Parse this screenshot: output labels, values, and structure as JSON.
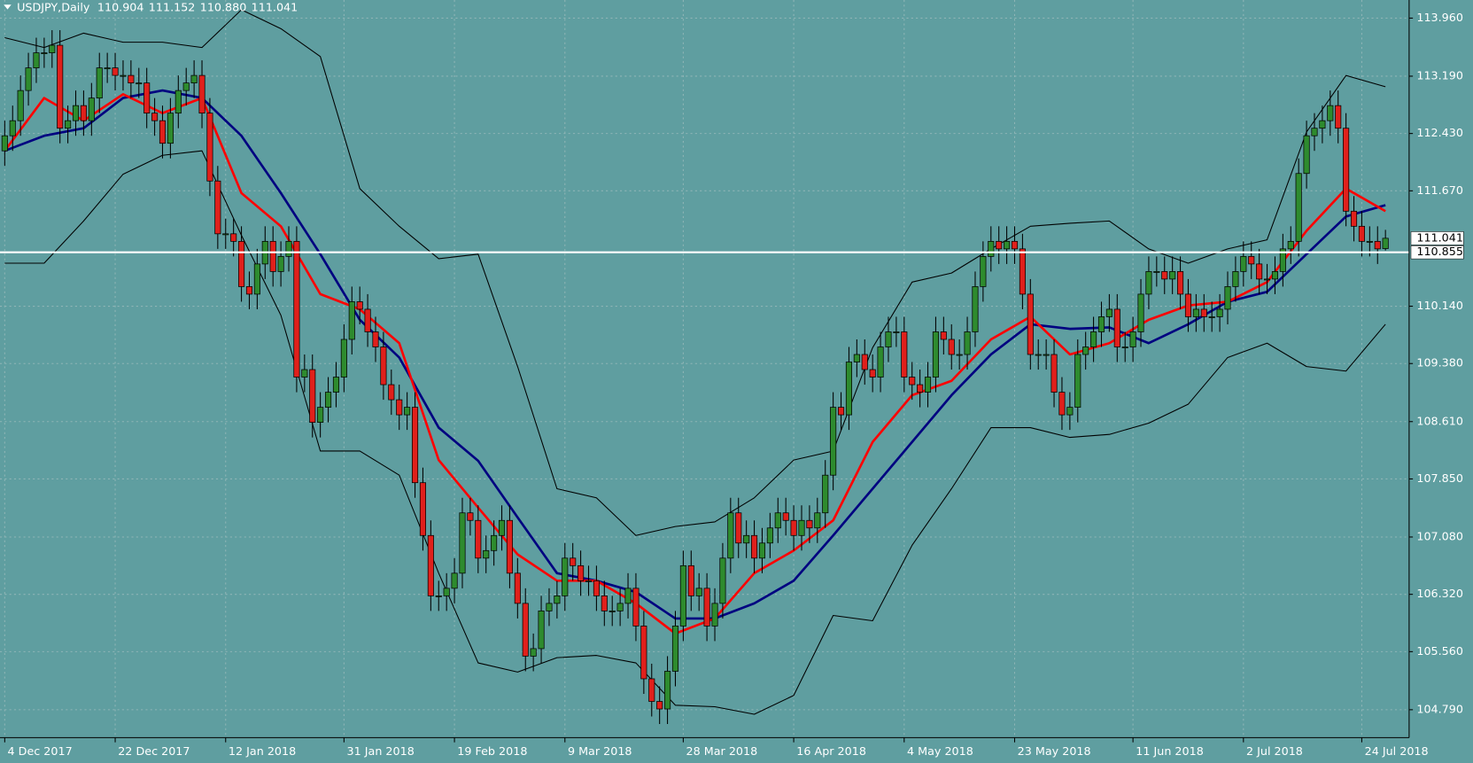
{
  "header": {
    "symbol": "USDJPY,Daily",
    "quote": [
      "110.904",
      "111.152",
      "110.880",
      "111.041"
    ]
  },
  "chart_data": {
    "type": "candlestick",
    "xlim": [
      -0.6,
      178
    ],
    "xticks": [
      {
        "value": 0,
        "label": "4 Dec 2017"
      },
      {
        "value": 14,
        "label": "22 Dec 2017"
      },
      {
        "value": 28,
        "label": "12 Jan 2018"
      },
      {
        "value": 43,
        "label": "31 Jan 2018"
      },
      {
        "value": 57,
        "label": "19 Feb 2018"
      },
      {
        "value": 71,
        "label": "9 Mar 2018"
      },
      {
        "value": 86,
        "label": "28 Mar 2018"
      },
      {
        "value": 100,
        "label": "16 Apr 2018"
      },
      {
        "value": 114,
        "label": "4 May 2018"
      },
      {
        "value": 128,
        "label": "23 May 2018"
      },
      {
        "value": 143,
        "label": "11 Jun 2018"
      },
      {
        "value": 157,
        "label": "2 Jul 2018"
      },
      {
        "value": 172,
        "label": "24 Jul 2018"
      }
    ],
    "ylim": [
      104.42,
      114.2
    ],
    "yticks": [
      {
        "value": 113.96,
        "label": "113.960"
      },
      {
        "value": 113.19,
        "label": "113.190"
      },
      {
        "value": 112.43,
        "label": "112.430"
      },
      {
        "value": 111.67,
        "label": "111.670"
      },
      {
        "value": 110.14,
        "label": "110.140"
      },
      {
        "value": 109.38,
        "label": "109.380"
      },
      {
        "value": 108.61,
        "label": "108.610"
      },
      {
        "value": 107.85,
        "label": "107.850"
      },
      {
        "value": 107.08,
        "label": "107.080"
      },
      {
        "value": 106.32,
        "label": "106.320"
      },
      {
        "value": 105.56,
        "label": "105.560"
      },
      {
        "value": 104.79,
        "label": "104.790"
      }
    ],
    "grid": true,
    "up_color": "#2e8b2e",
    "down_color": "#e0201b",
    "open": [
      112.2,
      112.4,
      112.6,
      113.0,
      113.3,
      113.5,
      113.5,
      113.6,
      112.5,
      112.6,
      112.8,
      112.6,
      112.9,
      113.3,
      113.3,
      113.2,
      113.2,
      113.1,
      113.1,
      112.7,
      112.6,
      112.3,
      112.7,
      113.0,
      113.1,
      113.2,
      112.7,
      111.8,
      111.1,
      111.1,
      111.0,
      110.4,
      110.3,
      110.7,
      111.0,
      110.6,
      110.8,
      111.0,
      109.2,
      109.3,
      108.6,
      108.8,
      109.0,
      109.2,
      109.7,
      110.2,
      110.1,
      109.8,
      109.6,
      109.1,
      108.9,
      108.7,
      108.8,
      107.8,
      107.1,
      106.3,
      106.3,
      106.4,
      106.6,
      107.4,
      107.3,
      106.8,
      106.9,
      107.1,
      107.3,
      106.6,
      106.2,
      105.5,
      105.6,
      106.1,
      106.2,
      106.3,
      106.8,
      106.7,
      106.5,
      106.5,
      106.3,
      106.1,
      106.1,
      106.2,
      106.4,
      105.9,
      105.2,
      104.9,
      104.8,
      105.3,
      105.9,
      106.7,
      106.3,
      106.4,
      105.9,
      106.2,
      106.8,
      107.4,
      107.0,
      107.1,
      106.8,
      107.0,
      107.2,
      107.4,
      107.3,
      107.1,
      107.3,
      107.2,
      107.4,
      107.9,
      108.8,
      108.7,
      109.4,
      109.5,
      109.3,
      109.2,
      109.6,
      109.8,
      109.8,
      109.2,
      109.1,
      109.0,
      109.2,
      109.8,
      109.7,
      109.5,
      109.5,
      109.8,
      110.4,
      110.8,
      111.0,
      110.9,
      111.0,
      110.9,
      110.3,
      109.5,
      109.5,
      109.5,
      109.0,
      108.7,
      108.8,
      109.5,
      109.6,
      109.8,
      110.0,
      110.1,
      109.6,
      109.6,
      109.8,
      110.3,
      110.6,
      110.6,
      110.5,
      110.6,
      110.3,
      110.0,
      110.1,
      110.0,
      110.0,
      110.1,
      110.4,
      110.6,
      110.8,
      110.7,
      110.5,
      110.5,
      110.6,
      110.9,
      111.0,
      111.9,
      112.4,
      112.5,
      112.6,
      112.8,
      112.5,
      111.4,
      111.2,
      111.0,
      111.0,
      110.904
    ],
    "high": [
      112.6,
      112.8,
      113.2,
      113.5,
      113.7,
      113.7,
      113.8,
      113.8,
      112.8,
      113.0,
      113.0,
      113.1,
      113.5,
      113.5,
      113.5,
      113.4,
      113.4,
      113.3,
      113.3,
      112.9,
      112.8,
      112.9,
      113.2,
      113.3,
      113.4,
      113.4,
      112.9,
      112.0,
      111.3,
      111.3,
      111.2,
      110.6,
      110.9,
      111.2,
      111.2,
      111.0,
      111.2,
      111.2,
      109.5,
      109.5,
      109.0,
      109.2,
      109.4,
      109.9,
      110.4,
      110.4,
      110.3,
      110.0,
      109.8,
      109.3,
      109.1,
      109.0,
      109.0,
      108.0,
      107.3,
      106.5,
      106.6,
      106.8,
      107.6,
      107.6,
      107.5,
      107.1,
      107.3,
      107.5,
      107.5,
      106.8,
      106.4,
      105.8,
      106.3,
      106.4,
      106.5,
      107.0,
      107.0,
      106.9,
      106.7,
      106.7,
      106.5,
      106.3,
      106.4,
      106.6,
      106.6,
      106.1,
      105.4,
      105.1,
      105.5,
      106.1,
      106.9,
      106.9,
      106.6,
      106.6,
      106.4,
      107.0,
      107.6,
      107.6,
      107.3,
      107.3,
      107.2,
      107.4,
      107.6,
      107.6,
      107.5,
      107.5,
      107.5,
      107.6,
      108.1,
      109.0,
      109.0,
      109.6,
      109.7,
      109.7,
      109.5,
      109.8,
      110.0,
      110.0,
      110.0,
      109.4,
      109.3,
      109.4,
      110.0,
      110.0,
      109.9,
      109.7,
      110.0,
      110.6,
      111.0,
      111.2,
      111.2,
      111.2,
      111.2,
      111.1,
      110.5,
      109.7,
      109.7,
      109.7,
      109.2,
      109.0,
      109.7,
      109.8,
      110.0,
      110.2,
      110.3,
      110.3,
      109.8,
      110.0,
      110.5,
      110.8,
      110.8,
      110.8,
      110.8,
      110.8,
      110.5,
      110.3,
      110.3,
      110.2,
      110.3,
      110.6,
      110.8,
      111.0,
      111.0,
      110.9,
      110.7,
      110.8,
      111.1,
      111.2,
      112.1,
      112.6,
      112.7,
      112.8,
      113.0,
      113.0,
      112.7,
      111.6,
      111.4,
      111.2,
      111.2,
      111.152
    ],
    "low": [
      112.0,
      112.2,
      112.4,
      112.8,
      113.1,
      113.3,
      113.3,
      112.3,
      112.3,
      112.4,
      112.4,
      112.4,
      112.7,
      113.1,
      113.0,
      113.0,
      112.9,
      112.9,
      112.5,
      112.4,
      112.1,
      112.1,
      112.5,
      112.8,
      112.9,
      112.5,
      111.6,
      110.9,
      110.9,
      110.8,
      110.2,
      110.1,
      110.1,
      110.5,
      110.4,
      110.4,
      110.6,
      109.0,
      109.0,
      108.4,
      108.4,
      108.6,
      108.8,
      109.0,
      109.5,
      109.9,
      109.6,
      109.4,
      108.9,
      108.7,
      108.5,
      108.5,
      107.6,
      106.9,
      106.1,
      106.1,
      106.1,
      106.2,
      106.4,
      107.1,
      106.6,
      106.6,
      106.7,
      106.9,
      106.4,
      106.0,
      105.3,
      105.3,
      105.4,
      105.9,
      106.0,
      106.1,
      106.5,
      106.3,
      106.3,
      106.1,
      105.9,
      105.9,
      105.9,
      106.0,
      105.7,
      105.0,
      104.7,
      104.6,
      104.6,
      105.1,
      105.7,
      106.1,
      106.1,
      105.7,
      105.7,
      106.0,
      106.6,
      106.8,
      106.8,
      106.6,
      106.6,
      106.8,
      107.0,
      107.1,
      106.9,
      106.9,
      107.0,
      107.0,
      107.2,
      107.7,
      108.5,
      108.5,
      109.2,
      109.1,
      109.0,
      109.0,
      109.4,
      109.6,
      109.0,
      108.9,
      108.8,
      108.8,
      109.0,
      109.5,
      109.3,
      109.3,
      109.3,
      109.6,
      110.2,
      110.6,
      110.7,
      110.7,
      110.7,
      110.1,
      109.3,
      109.3,
      109.3,
      108.8,
      108.5,
      108.5,
      108.6,
      109.3,
      109.4,
      109.6,
      109.8,
      109.4,
      109.4,
      109.4,
      109.6,
      110.1,
      110.4,
      110.3,
      110.3,
      110.1,
      109.8,
      109.8,
      109.8,
      109.8,
      109.8,
      109.9,
      110.2,
      110.4,
      110.5,
      110.3,
      110.3,
      110.3,
      110.4,
      110.7,
      110.8,
      111.7,
      112.2,
      112.3,
      112.4,
      112.3,
      111.2,
      111.0,
      110.8,
      110.8,
      110.7,
      110.88
    ],
    "close": [
      112.4,
      112.6,
      113.0,
      113.3,
      113.5,
      113.5,
      113.6,
      112.5,
      112.6,
      112.8,
      112.6,
      112.9,
      113.3,
      113.3,
      113.2,
      113.2,
      113.1,
      113.1,
      112.7,
      112.6,
      112.3,
      112.7,
      113.0,
      113.1,
      113.2,
      112.7,
      111.8,
      111.1,
      111.1,
      111.0,
      110.4,
      110.3,
      110.7,
      111.0,
      110.6,
      110.8,
      111.0,
      109.2,
      109.3,
      108.6,
      108.8,
      109.0,
      109.2,
      109.7,
      110.2,
      110.1,
      109.8,
      109.6,
      109.1,
      108.9,
      108.7,
      108.8,
      107.8,
      107.1,
      106.3,
      106.3,
      106.4,
      106.6,
      107.4,
      107.3,
      106.8,
      106.9,
      107.1,
      107.3,
      106.6,
      106.2,
      105.5,
      105.6,
      106.1,
      106.2,
      106.3,
      106.8,
      106.7,
      106.5,
      106.5,
      106.3,
      106.1,
      106.1,
      106.2,
      106.4,
      105.9,
      105.2,
      104.9,
      104.8,
      105.3,
      105.9,
      106.7,
      106.3,
      106.4,
      105.9,
      106.2,
      106.8,
      107.4,
      107.0,
      107.1,
      106.8,
      107.0,
      107.2,
      107.4,
      107.3,
      107.1,
      107.3,
      107.2,
      107.4,
      107.9,
      108.8,
      108.7,
      109.4,
      109.5,
      109.3,
      109.2,
      109.6,
      109.8,
      109.8,
      109.2,
      109.1,
      109.0,
      109.2,
      109.8,
      109.7,
      109.5,
      109.5,
      109.8,
      110.4,
      110.8,
      111.0,
      110.9,
      111.0,
      110.9,
      110.3,
      109.5,
      109.5,
      109.5,
      109.0,
      108.7,
      108.8,
      109.5,
      109.6,
      109.8,
      110.0,
      110.1,
      109.6,
      109.6,
      109.8,
      110.3,
      110.6,
      110.6,
      110.5,
      110.6,
      110.3,
      110.0,
      110.1,
      110.0,
      110.0,
      110.1,
      110.4,
      110.6,
      110.8,
      110.7,
      110.5,
      110.5,
      110.6,
      110.9,
      111.0,
      111.9,
      112.4,
      112.5,
      112.6,
      112.8,
      112.5,
      111.4,
      111.2,
      111.0,
      111.0,
      110.9,
      111.041
    ],
    "line_x": [
      0,
      5,
      10,
      15,
      20,
      25,
      30,
      35,
      40,
      45,
      50,
      55,
      60,
      65,
      70,
      75,
      80,
      85,
      90,
      95,
      100,
      105,
      110,
      115,
      120,
      125,
      130,
      135,
      140,
      145,
      150,
      155,
      160,
      165,
      170,
      175
    ],
    "lines": [
      {
        "color": "#000000",
        "width": 1,
        "values": [
          113.7,
          113.57,
          113.76,
          113.64,
          113.64,
          113.57,
          114.07,
          113.82,
          113.45,
          111.7,
          111.2,
          110.77,
          110.83,
          109.34,
          107.72,
          107.6,
          107.1,
          107.22,
          107.28,
          107.6,
          108.1,
          108.22,
          109.59,
          110.46,
          110.58,
          110.9,
          111.2,
          111.24,
          111.27,
          110.9,
          110.71,
          110.9,
          111.02,
          112.45,
          113.2,
          113.05
        ]
      },
      {
        "color": "#000000",
        "width": 1,
        "values": [
          110.71,
          110.71,
          111.27,
          111.89,
          112.14,
          112.2,
          111.08,
          110.02,
          108.22,
          108.22,
          107.9,
          106.6,
          105.41,
          105.29,
          105.48,
          105.51,
          105.41,
          104.85,
          104.83,
          104.73,
          104.98,
          106.04,
          105.97,
          106.97,
          107.72,
          108.53,
          108.53,
          108.4,
          108.44,
          108.59,
          108.84,
          109.46,
          109.65,
          109.34,
          109.28,
          109.9
        ]
      },
      {
        "color": "#000080",
        "width": 2.5,
        "values": [
          112.2,
          112.4,
          112.5,
          112.9,
          113.0,
          112.9,
          112.4,
          111.64,
          110.83,
          109.96,
          109.46,
          108.53,
          108.09,
          107.34,
          106.6,
          106.5,
          106.35,
          106.0,
          106.0,
          106.2,
          106.5,
          107.1,
          107.72,
          108.34,
          108.96,
          109.5,
          109.9,
          109.84,
          109.86,
          109.65,
          109.9,
          110.2,
          110.33,
          110.83,
          111.33,
          111.48
        ]
      },
      {
        "color": "#ff0000",
        "width": 2.5,
        "values": [
          112.2,
          112.9,
          112.6,
          112.95,
          112.7,
          112.9,
          111.64,
          111.2,
          110.3,
          110.1,
          109.65,
          108.1,
          107.47,
          106.85,
          106.5,
          106.5,
          106.2,
          105.8,
          106.0,
          106.6,
          106.9,
          107.3,
          108.34,
          108.96,
          109.15,
          109.7,
          110.0,
          109.5,
          109.65,
          109.96,
          110.15,
          110.2,
          110.46,
          111.14,
          111.7,
          111.4
        ]
      }
    ],
    "hline": {
      "value": 110.855,
      "label": "110.855",
      "color": "#ffffff"
    },
    "current_price": {
      "value": 111.041,
      "label": "111.041"
    }
  }
}
